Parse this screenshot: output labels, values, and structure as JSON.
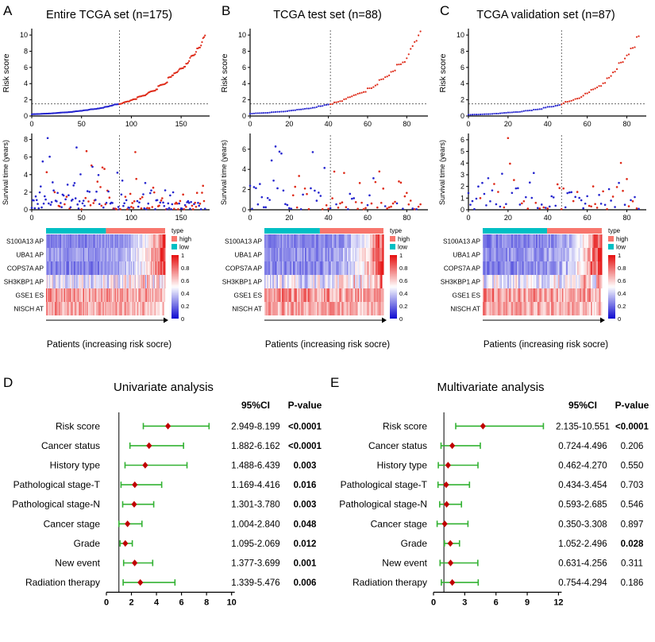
{
  "figure_type": "multi-panel risk model figure",
  "chart_data": [
    {
      "panel_label": "A",
      "title": "Entire TCGA set (n=175)",
      "type": "risk-model-panel",
      "n": 175,
      "cutoff_index": 88,
      "risk_threshold": 1.5,
      "group_colors": {
        "low_risk_dot": "#2424CE",
        "high_risk_dot": "#DE2A18"
      },
      "risk_plot": {
        "type": "scatter",
        "ylabel": "Risk score",
        "ylim": [
          0,
          10.6
        ],
        "yticks": [
          0,
          2,
          4,
          6,
          8,
          10
        ],
        "xticks": [
          0,
          50,
          100,
          150
        ],
        "description": "risk scores sorted ascending, dashed lines mark cutoff"
      },
      "survival_plot": {
        "type": "scatter",
        "ylabel": "Survival time (years)",
        "ylim": [
          0,
          8.5
        ],
        "yticks": [
          0,
          2,
          4,
          6,
          8
        ],
        "xticks": [
          0,
          50,
          100,
          150
        ]
      },
      "heatmap": {
        "type": "heatmap",
        "rows": [
          "S100A13 AP",
          "UBA1 AP",
          "COPS7A AP",
          "SH3KBP1 AP",
          "GSE1 ES",
          "NISCH AT"
        ],
        "value_range": [
          0,
          1
        ],
        "colorbar_ticks": [
          "1",
          "0.8",
          "0.6",
          "0.4",
          "0.2",
          "0"
        ],
        "colormap": "blue-white-red",
        "annotation": {
          "title": "type",
          "items": [
            {
              "label": "high",
              "color": "#F8766D"
            },
            {
              "label": "low",
              "color": "#00BFC4"
            }
          ]
        }
      },
      "xlabel": "Patients (increasing risk socre)"
    },
    {
      "panel_label": "B",
      "title": "TCGA test set (n=88)",
      "type": "risk-model-panel",
      "n": 88,
      "cutoff_index": 41,
      "risk_threshold": 1.5,
      "group_colors": {
        "low_risk_dot": "#2424CE",
        "high_risk_dot": "#DE2A18"
      },
      "risk_plot": {
        "type": "scatter",
        "ylabel": "Risk score",
        "ylim": [
          0,
          10.6
        ],
        "yticks": [
          0,
          2,
          4,
          6,
          8,
          10
        ],
        "xticks": [
          0,
          20,
          40,
          60,
          80
        ],
        "description": "risk scores sorted ascending, dashed lines mark cutoff"
      },
      "survival_plot": {
        "type": "scatter",
        "ylabel": "Survival time (years)",
        "ylim": [
          0,
          7.4
        ],
        "yticks": [
          0,
          2,
          4,
          6
        ],
        "xticks": [
          0,
          20,
          40,
          60,
          80
        ]
      },
      "heatmap": {
        "type": "heatmap",
        "rows": [
          "S100A13 AP",
          "UBA1 AP",
          "COPS7A AP",
          "SH3KBP1 AP",
          "GSE1 ES",
          "NISCH AT"
        ],
        "value_range": [
          0,
          1
        ],
        "colorbar_ticks": [
          "1",
          "0.8",
          "0.6",
          "0.4",
          "0.2",
          "0"
        ],
        "colormap": "blue-white-red",
        "annotation": {
          "title": "type",
          "items": [
            {
              "label": "high",
              "color": "#F8766D"
            },
            {
              "label": "low",
              "color": "#00BFC4"
            }
          ]
        }
      },
      "xlabel": "Patients (increasing risk socre)"
    },
    {
      "panel_label": "C",
      "title": "TCGA validation set (n=87)",
      "type": "risk-model-panel",
      "n": 87,
      "cutoff_index": 47,
      "risk_threshold": 1.5,
      "group_colors": {
        "low_risk_dot": "#2424CE",
        "high_risk_dot": "#DE2A18"
      },
      "risk_plot": {
        "type": "scatter",
        "ylabel": "Risk score",
        "ylim": [
          0,
          10.6
        ],
        "yticks": [
          0,
          2,
          4,
          6,
          8,
          10
        ],
        "xticks": [
          0,
          20,
          40,
          60,
          80
        ],
        "description": "risk scores sorted ascending, dashed lines mark cutoff"
      },
      "survival_plot": {
        "type": "scatter",
        "ylabel": "Survival time (years)",
        "ylim": [
          0,
          6.4
        ],
        "yticks": [
          0,
          1,
          2,
          3,
          4,
          5,
          6
        ],
        "xticks": [
          0,
          20,
          40,
          60,
          80
        ]
      },
      "heatmap": {
        "type": "heatmap",
        "rows": [
          "S100A13 AP",
          "UBA1 AP",
          "COPS7A AP",
          "SH3KBP1 AP",
          "GSE1 ES",
          "NISCH AT"
        ],
        "value_range": [
          0,
          1
        ],
        "colorbar_ticks": [
          "1",
          "0.8",
          "0.6",
          "0.4",
          "0.2",
          "0"
        ],
        "colormap": "blue-white-red",
        "annotation": {
          "title": "type",
          "items": [
            {
              "label": "high",
              "color": "#F8766D"
            },
            {
              "label": "low",
              "color": "#00BFC4"
            }
          ]
        }
      },
      "xlabel": "Patients (increasing risk socre)"
    },
    {
      "panel_label": "D",
      "title": "Univariate analysis",
      "type": "forest",
      "columns": {
        "ci": "95%CI",
        "p": "P-value"
      },
      "xticks": [
        0,
        2,
        4,
        6,
        8,
        10
      ],
      "xmax": 10.4,
      "reference_line": 1,
      "style": {
        "ci_color": "#33B233",
        "point_color": "#C00000"
      },
      "rows": [
        {
          "name": "Risk score",
          "estimate": 4.92,
          "ci_low": 2.949,
          "ci_high": 8.199,
          "ci": "2.949-8.199",
          "p": "<0.0001",
          "significant": true
        },
        {
          "name": "Cancer status",
          "estimate": 3.41,
          "ci_low": 1.882,
          "ci_high": 6.162,
          "ci": "1.882-6.162",
          "p": "<0.0001",
          "significant": true
        },
        {
          "name": "History type",
          "estimate": 3.1,
          "ci_low": 1.488,
          "ci_high": 6.439,
          "ci": "1.488-6.439",
          "p": "0.003",
          "significant": true
        },
        {
          "name": "Pathological stage-T",
          "estimate": 2.27,
          "ci_low": 1.169,
          "ci_high": 4.416,
          "ci": "1.169-4.416",
          "p": "0.016",
          "significant": true
        },
        {
          "name": "Pathological stage-N",
          "estimate": 2.22,
          "ci_low": 1.301,
          "ci_high": 3.78,
          "ci": "1.301-3.780",
          "p": "0.003",
          "significant": true
        },
        {
          "name": "Cancer stage",
          "estimate": 1.69,
          "ci_low": 1.004,
          "ci_high": 2.84,
          "ci": "1.004-2.840",
          "p": "0.048",
          "significant": true
        },
        {
          "name": "Grade",
          "estimate": 1.51,
          "ci_low": 1.095,
          "ci_high": 2.069,
          "ci": "1.095-2.069",
          "p": "0.012",
          "significant": true
        },
        {
          "name": "New event",
          "estimate": 2.26,
          "ci_low": 1.377,
          "ci_high": 3.699,
          "ci": "1.377-3.699",
          "p": "0.001",
          "significant": true
        },
        {
          "name": "Radiation therapy",
          "estimate": 2.71,
          "ci_low": 1.339,
          "ci_high": 5.476,
          "ci": "1.339-5.476",
          "p": "0.006",
          "significant": true
        }
      ]
    },
    {
      "panel_label": "E",
      "title": "Multivariate analysis",
      "type": "forest",
      "columns": {
        "ci": "95%CI",
        "p": "P-value"
      },
      "xticks": [
        0,
        3,
        6,
        9,
        12
      ],
      "xmax": 12.5,
      "reference_line": 1,
      "style": {
        "ci_color": "#33B233",
        "point_color": "#C00000"
      },
      "rows": [
        {
          "name": "Risk score",
          "estimate": 4.75,
          "ci_low": 2.135,
          "ci_high": 10.551,
          "ci": "2.135-10.551",
          "p": "<0.0001",
          "significant": true
        },
        {
          "name": "Cancer status",
          "estimate": 1.8,
          "ci_low": 0.724,
          "ci_high": 4.496,
          "ci": "0.724-4.496",
          "p": "0.206",
          "significant": false
        },
        {
          "name": "History type",
          "estimate": 1.4,
          "ci_low": 0.462,
          "ci_high": 4.27,
          "ci": "0.462-4.270",
          "p": "0.550",
          "significant": false
        },
        {
          "name": "Pathological stage-T",
          "estimate": 1.22,
          "ci_low": 0.434,
          "ci_high": 3.454,
          "ci": "0.434-3.454",
          "p": "0.703",
          "significant": false
        },
        {
          "name": "Pathological stage-N",
          "estimate": 1.26,
          "ci_low": 0.593,
          "ci_high": 2.685,
          "ci": "0.593-2.685",
          "p": "0.546",
          "significant": false
        },
        {
          "name": "Cancer stage",
          "estimate": 1.08,
          "ci_low": 0.35,
          "ci_high": 3.308,
          "ci": "0.350-3.308",
          "p": "0.897",
          "significant": false
        },
        {
          "name": "Grade",
          "estimate": 1.62,
          "ci_low": 1.052,
          "ci_high": 2.496,
          "ci": "1.052-2.496",
          "p": "0.028",
          "significant": true
        },
        {
          "name": "New event",
          "estimate": 1.64,
          "ci_low": 0.631,
          "ci_high": 4.256,
          "ci": "0.631-4.256",
          "p": "0.311",
          "significant": false
        },
        {
          "name": "Radiation therapy",
          "estimate": 1.8,
          "ci_low": 0.754,
          "ci_high": 4.294,
          "ci": "0.754-4.294",
          "p": "0.186",
          "significant": false
        }
      ]
    }
  ]
}
